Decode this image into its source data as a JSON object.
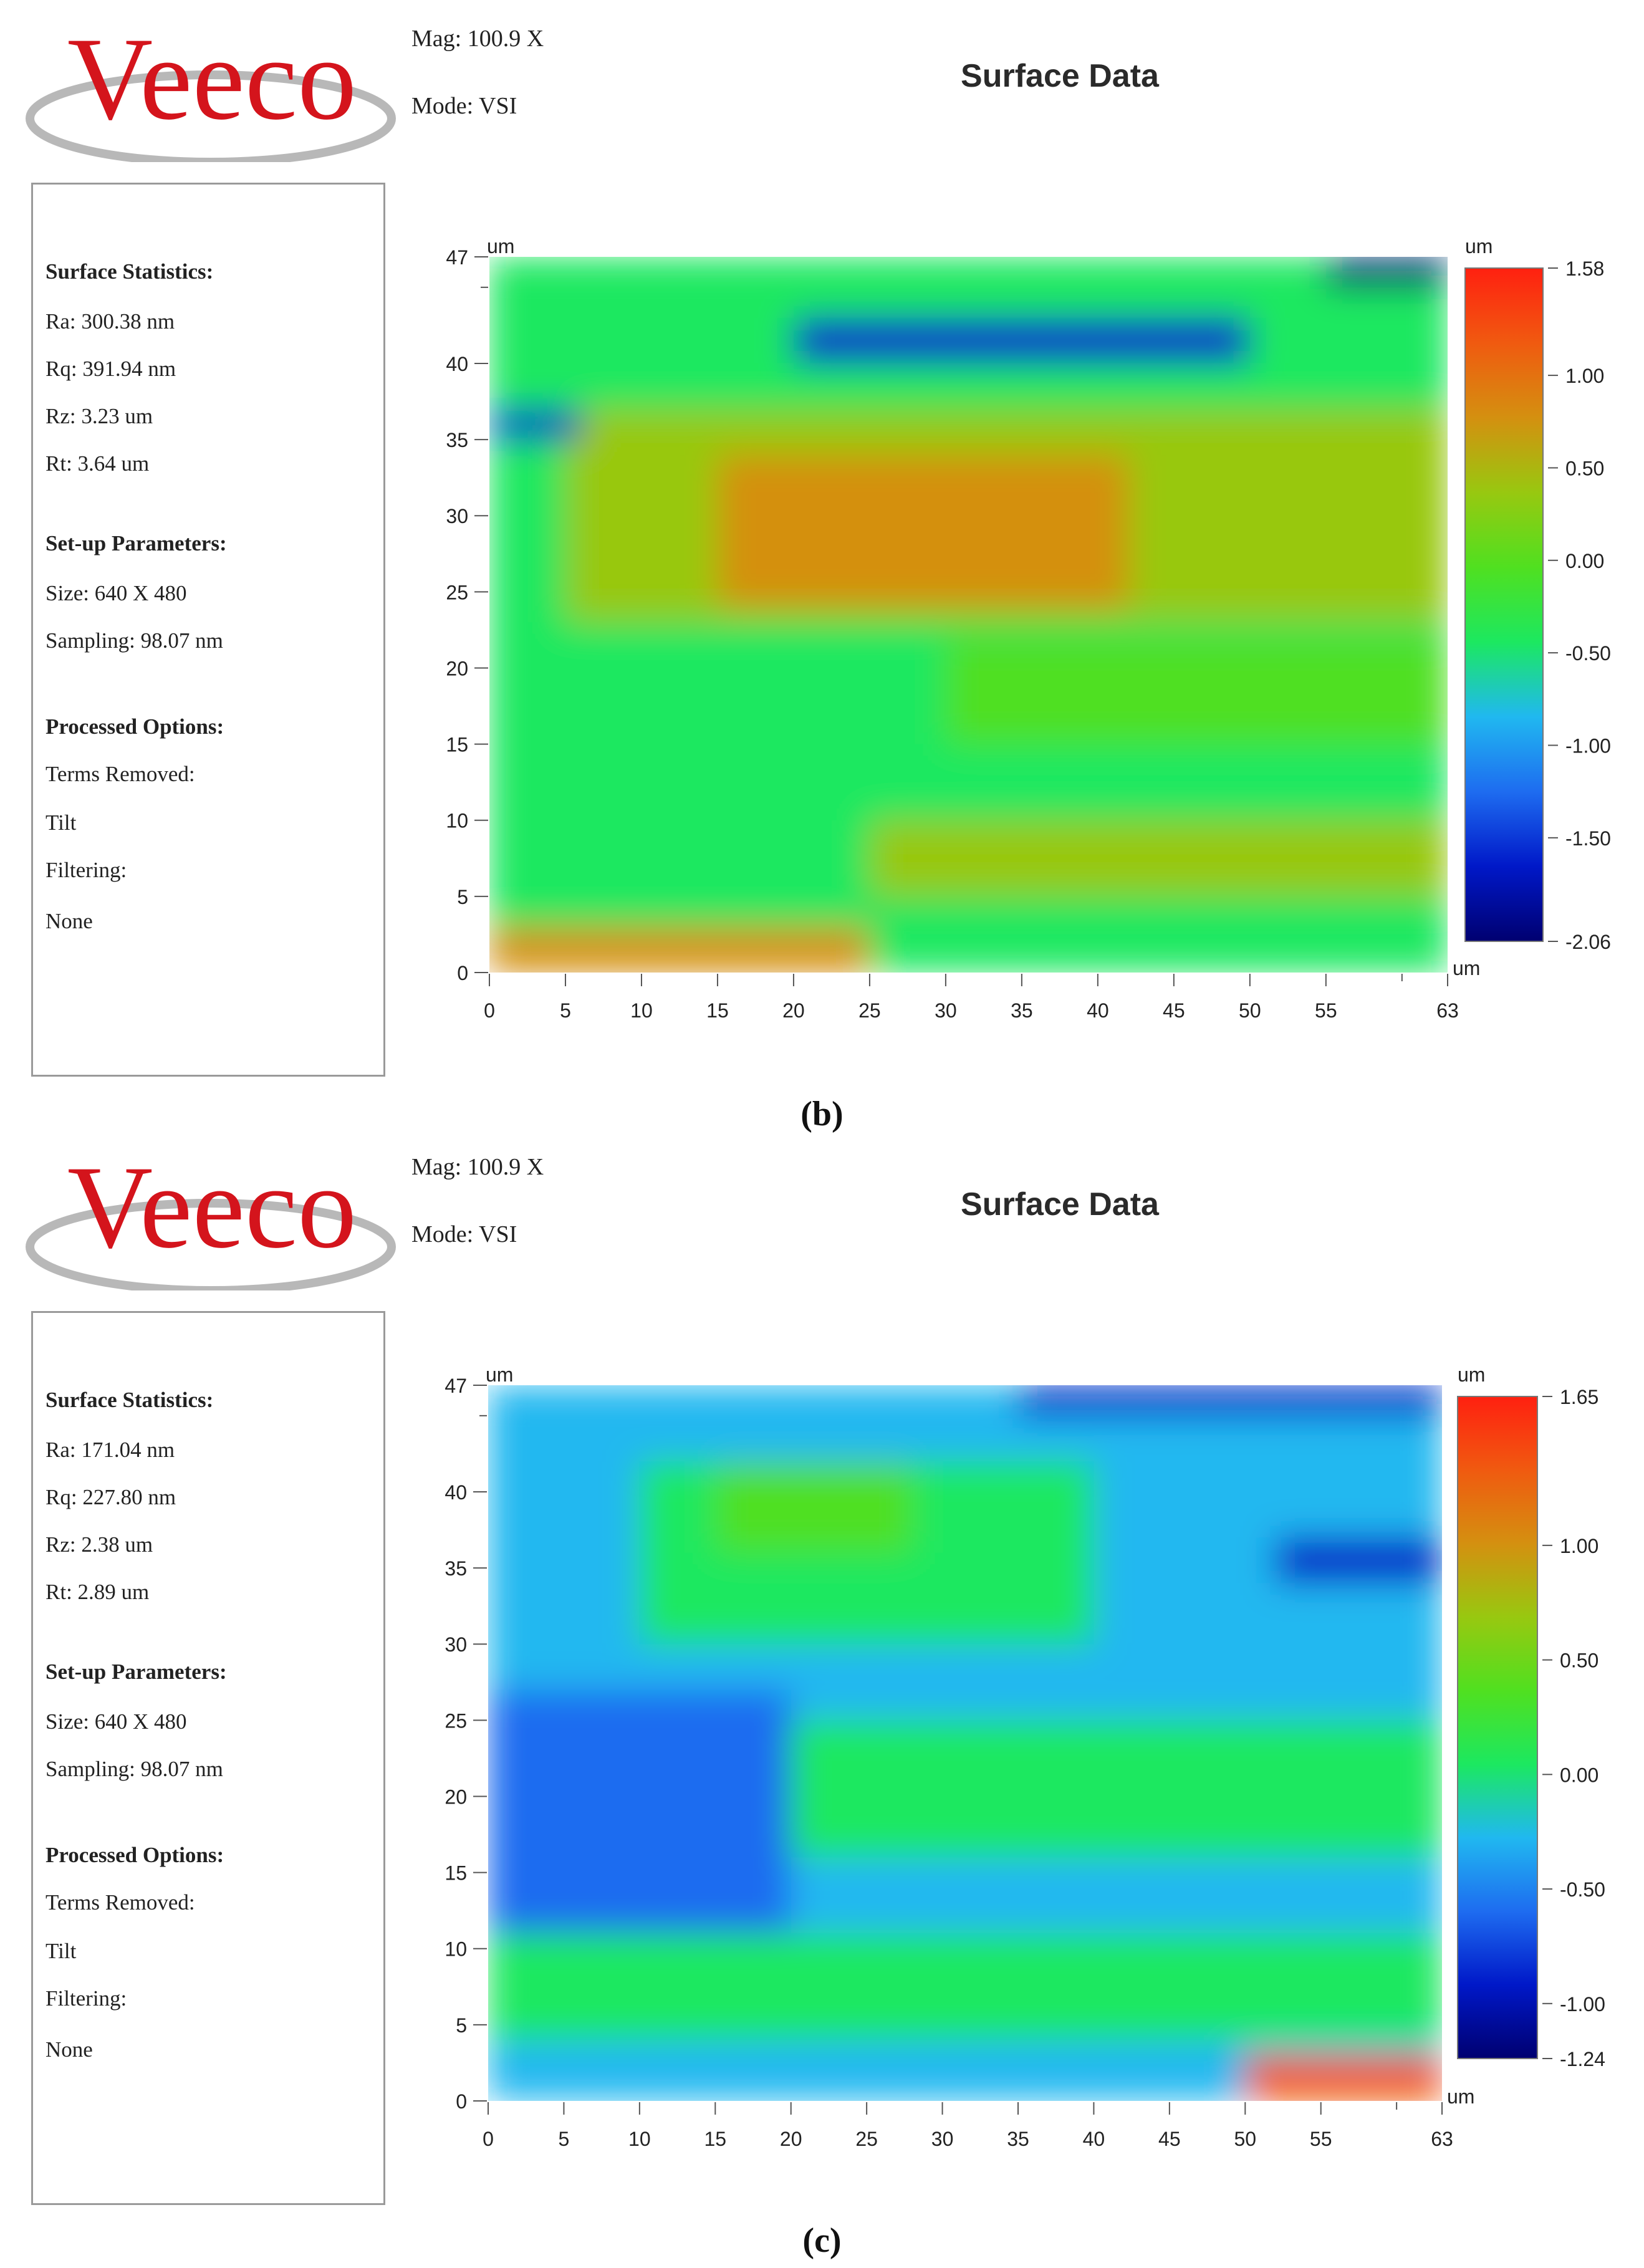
{
  "panels": [
    {
      "logo_text": "Veeco",
      "mag": "Mag:  100.9 X",
      "mode": "Mode:  VSI",
      "title": "Surface Data",
      "stats": {
        "surface_header": "Surface Statistics:",
        "ra": "Ra:  300.38 nm",
        "rq": "Rq:  391.94 nm",
        "rz": "Rz:  3.23 um",
        "rt": "Rt:  3.64 um",
        "setup_header": "Set-up Parameters:",
        "size": "Size: 640 X 480",
        "sampling": "Sampling:  98.07 nm",
        "processed_header": "Processed Options:",
        "terms_removed": "Terms Removed:",
        "terms_value": "Tilt",
        "filtering": "Filtering:",
        "filtering_value": "None"
      },
      "caption": "(b)"
    },
    {
      "logo_text": "Veeco",
      "mag": "Mag:  100.9 X",
      "mode": "Mode:  VSI",
      "title": "Surface Data",
      "stats": {
        "surface_header": "Surface Statistics:",
        "ra": "Ra:  171.04 nm",
        "rq": "Rq:  227.80 nm",
        "rz": "Rz:  2.38 um",
        "rt": "Rt:  2.89 um",
        "setup_header": "Set-up Parameters:",
        "size": "Size: 640 X 480",
        "sampling": "Sampling:  98.07 nm",
        "processed_header": "Processed Options:",
        "terms_removed": "Terms Removed:",
        "terms_value": "Tilt",
        "filtering": "Filtering:",
        "filtering_value": "None"
      },
      "caption": "(c)"
    }
  ],
  "colors": {
    "logo_red": "#d4141c",
    "logo_swoosh": "#b8b8b8",
    "colormap": [
      "#000070",
      "#0018c8",
      "#1e6cf0",
      "#20b8f0",
      "#1ce860",
      "#50e020",
      "#98c810",
      "#d49010",
      "#f05a10",
      "#ff2010"
    ]
  },
  "chart_data": [
    {
      "type": "heatmap",
      "title": "Surface Data",
      "x_unit": "um",
      "y_unit": "um",
      "z_unit": "um",
      "xlim": [
        0,
        63
      ],
      "ylim": [
        0,
        47
      ],
      "x_ticks": [
        "0",
        "5",
        "10",
        "15",
        "20",
        "25",
        "30",
        "35",
        "40",
        "45",
        "50",
        "55",
        "63"
      ],
      "y_ticks": [
        "0",
        "5",
        "10",
        "15",
        "20",
        "25",
        "30",
        "35",
        "40",
        "47"
      ],
      "zlim": [
        -2.06,
        1.58
      ],
      "colorbar_ticks": [
        "1.58",
        "1.00",
        "0.50",
        "0.00",
        "-0.50",
        "-1.00",
        "-1.50",
        "-2.06"
      ],
      "colorbar_values": [
        1.58,
        1.0,
        0.5,
        0.0,
        -0.5,
        -1.0,
        -1.5,
        -2.06
      ],
      "regions": [
        {
          "x": [
            0,
            63
          ],
          "y": [
            0,
            47
          ],
          "z": -0.3
        },
        {
          "x": [
            5,
            63
          ],
          "y": [
            23,
            37
          ],
          "z": 0.3
        },
        {
          "x": [
            15,
            42
          ],
          "y": [
            24,
            34
          ],
          "z": 0.9
        },
        {
          "x": [
            0,
            63
          ],
          "y": [
            43,
            47
          ],
          "z": -0.4
        },
        {
          "x": [
            20,
            50
          ],
          "y": [
            40,
            43
          ],
          "z": -1.6
        },
        {
          "x": [
            55,
            63
          ],
          "y": [
            45,
            47
          ],
          "z": -1.9
        },
        {
          "x": [
            0,
            6
          ],
          "y": [
            35,
            37
          ],
          "z": -1.5
        },
        {
          "x": [
            0,
            25
          ],
          "y": [
            0,
            3
          ],
          "z": 0.7
        },
        {
          "x": [
            25,
            63
          ],
          "y": [
            5,
            10
          ],
          "z": 0.2
        },
        {
          "x": [
            30,
            63
          ],
          "y": [
            15,
            22
          ],
          "z": 0.1
        }
      ]
    },
    {
      "type": "heatmap",
      "title": "Surface Data",
      "x_unit": "um",
      "y_unit": "um",
      "z_unit": "um",
      "xlim": [
        0,
        63
      ],
      "ylim": [
        0,
        47
      ],
      "x_ticks": [
        "0",
        "5",
        "10",
        "15",
        "20",
        "25",
        "30",
        "35",
        "40",
        "45",
        "50",
        "55",
        "63"
      ],
      "y_ticks": [
        "0",
        "5",
        "10",
        "15",
        "20",
        "25",
        "30",
        "35",
        "40",
        "47"
      ],
      "zlim": [
        -1.24,
        1.65
      ],
      "colorbar_ticks": [
        "1.65",
        "1.00",
        "0.50",
        "0.00",
        "-0.50",
        "-1.00",
        "-1.24"
      ],
      "colorbar_values": [
        1.65,
        1.0,
        0.5,
        0.0,
        -0.5,
        -1.0,
        -1.24
      ],
      "regions": [
        {
          "x": [
            0,
            63
          ],
          "y": [
            0,
            47
          ],
          "z": -0.2
        },
        {
          "x": [
            10,
            40
          ],
          "y": [
            30,
            42
          ],
          "z": 0.2
        },
        {
          "x": [
            15,
            28
          ],
          "y": [
            36,
            42
          ],
          "z": 0.5
        },
        {
          "x": [
            0,
            20
          ],
          "y": [
            10,
            27
          ],
          "z": -0.7
        },
        {
          "x": [
            20,
            63
          ],
          "y": [
            16,
            25
          ],
          "z": 0.1
        },
        {
          "x": [
            0,
            63
          ],
          "y": [
            4,
            11
          ],
          "z": 0.05
        },
        {
          "x": [
            35,
            63
          ],
          "y": [
            45,
            47
          ],
          "z": -0.8
        },
        {
          "x": [
            52,
            63
          ],
          "y": [
            34,
            37
          ],
          "z": -0.9
        },
        {
          "x": [
            50,
            63
          ],
          "y": [
            0,
            3
          ],
          "z": 1.3
        }
      ]
    }
  ]
}
